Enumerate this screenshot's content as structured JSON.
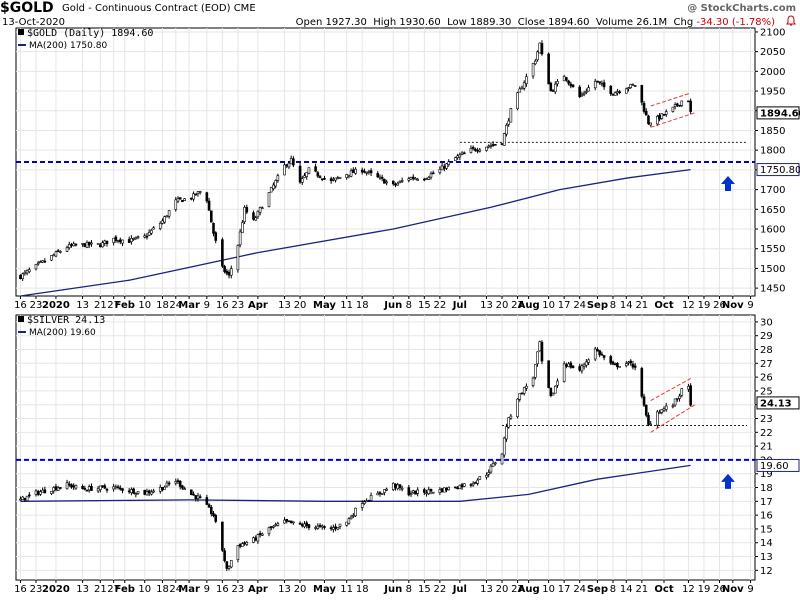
{
  "header": {
    "symbol": "$GOLD",
    "description": "Gold - Continuous Contract (EOD)",
    "exchange": "CME",
    "date": "13-Oct-2020",
    "quote": {
      "open_label": "Open",
      "open": "1927.30",
      "high_label": "High",
      "high": "1930.60",
      "low_label": "Low",
      "low": "1889.30",
      "close_label": "Close",
      "close": "1894.60",
      "volume_label": "Volume",
      "volume": "26.1M",
      "chg_label": "Chg",
      "chg": "-34.30 (-1.78%)"
    },
    "credit": "@ StockCharts.com"
  },
  "chart_data": [
    {
      "type": "candlestick",
      "title": "$GOLD (Daily) 1894.60",
      "ma_label": "MA(200) 1750.80",
      "last_price": "1894.60",
      "ma_value": "1750.80",
      "ylim": [
        1430,
        2110
      ],
      "yticks": [
        1450,
        1500,
        1550,
        1600,
        1650,
        1700,
        1750,
        1800,
        1850,
        1900,
        1950,
        2000,
        2050,
        2100
      ],
      "colors": {
        "price": "#000000",
        "ma": "#1a237e",
        "support": "#0000cc",
        "channel": "#e53935",
        "arrow": "#0033cc"
      },
      "price_path": [
        [
          "2019-12-16",
          1480
        ],
        [
          "2019-12-23",
          1505
        ],
        [
          "2020-01-06",
          1555
        ],
        [
          "2020-01-13",
          1560
        ],
        [
          "2020-01-21",
          1560
        ],
        [
          "2020-01-27",
          1575
        ],
        [
          "2020-02-03",
          1570
        ],
        [
          "2020-02-10",
          1580
        ],
        [
          "2020-02-18",
          1620
        ],
        [
          "2020-02-24",
          1670
        ],
        [
          "2020-03-02",
          1680
        ],
        [
          "2020-03-06",
          1695
        ],
        [
          "2020-03-09",
          1675
        ],
        [
          "2020-03-12",
          1590
        ],
        [
          "2020-03-16",
          1500
        ],
        [
          "2020-03-19",
          1480
        ],
        [
          "2020-03-23",
          1560
        ],
        [
          "2020-03-26",
          1650
        ],
        [
          "2020-03-30",
          1620
        ],
        [
          "2020-04-06",
          1690
        ],
        [
          "2020-04-13",
          1760
        ],
        [
          "2020-04-16",
          1775
        ],
        [
          "2020-04-20",
          1715
        ],
        [
          "2020-04-24",
          1750
        ],
        [
          "2020-05-04",
          1720
        ],
        [
          "2020-05-11",
          1740
        ],
        [
          "2020-05-18",
          1750
        ],
        [
          "2020-05-25",
          1730
        ],
        [
          "2020-06-01",
          1710
        ],
        [
          "2020-06-08",
          1730
        ],
        [
          "2020-06-15",
          1730
        ],
        [
          "2020-06-22",
          1750
        ],
        [
          "2020-06-29",
          1780
        ],
        [
          "2020-07-06",
          1800
        ],
        [
          "2020-07-13",
          1810
        ],
        [
          "2020-07-20",
          1820
        ],
        [
          "2020-07-24",
          1900
        ],
        [
          "2020-07-27",
          1940
        ],
        [
          "2020-07-31",
          1985
        ],
        [
          "2020-08-04",
          2030
        ],
        [
          "2020-08-06",
          2070
        ],
        [
          "2020-08-07",
          2040
        ],
        [
          "2020-08-11",
          1950
        ],
        [
          "2020-08-17",
          1990
        ],
        [
          "2020-08-24",
          1935
        ],
        [
          "2020-08-31",
          1975
        ],
        [
          "2020-09-08",
          1945
        ],
        [
          "2020-09-14",
          1960
        ],
        [
          "2020-09-18",
          1965
        ],
        [
          "2020-09-21",
          1920
        ],
        [
          "2020-09-24",
          1870
        ],
        [
          "2020-09-28",
          1880
        ],
        [
          "2020-10-05",
          1905
        ],
        [
          "2020-10-09",
          1925
        ],
        [
          "2020-10-12",
          1928
        ],
        [
          "2020-10-13",
          1894.6
        ]
      ],
      "ma_path": [
        [
          "2019-12-16",
          1430
        ],
        [
          "2020-02-03",
          1470
        ],
        [
          "2020-04-01",
          1540
        ],
        [
          "2020-06-01",
          1600
        ],
        [
          "2020-07-15",
          1655
        ],
        [
          "2020-08-15",
          1700
        ],
        [
          "2020-09-15",
          1730
        ],
        [
          "2020-10-13",
          1750.8
        ]
      ],
      "support_level": 1770,
      "breakout_level": 1820,
      "channel": {
        "lower": [
          [
            "2020-09-25",
            1858
          ],
          [
            "2020-10-15",
            1895
          ]
        ],
        "upper": [
          [
            "2020-09-25",
            1912
          ],
          [
            "2020-10-13",
            1945
          ]
        ]
      }
    },
    {
      "type": "candlestick",
      "title": "$SILVER 24.13",
      "ma_label": "MA(200) 19.60",
      "last_price": "24.13",
      "ma_value": "19.60",
      "ylim": [
        11.3,
        30.5
      ],
      "yticks": [
        12,
        13,
        14,
        15,
        16,
        17,
        18,
        19,
        20,
        21,
        22,
        23,
        24,
        25,
        26,
        27,
        28,
        29,
        30
      ],
      "colors": {
        "price": "#000000",
        "ma": "#1a237e",
        "support": "#0000cc",
        "channel": "#e53935",
        "arrow": "#0033cc"
      },
      "price_path": [
        [
          "2019-12-16",
          17.1
        ],
        [
          "2019-12-23",
          17.6
        ],
        [
          "2020-01-06",
          18.2
        ],
        [
          "2020-01-13",
          17.9
        ],
        [
          "2020-01-27",
          18.0
        ],
        [
          "2020-02-10",
          17.6
        ],
        [
          "2020-02-18",
          18.0
        ],
        [
          "2020-02-24",
          18.5
        ],
        [
          "2020-03-02",
          17.5
        ],
        [
          "2020-03-06",
          17.2
        ],
        [
          "2020-03-12",
          16.0
        ],
        [
          "2020-03-16",
          13.5
        ],
        [
          "2020-03-18",
          12.0
        ],
        [
          "2020-03-23",
          13.8
        ],
        [
          "2020-03-30",
          14.2
        ],
        [
          "2020-04-06",
          15.0
        ],
        [
          "2020-04-13",
          15.5
        ],
        [
          "2020-04-20",
          15.3
        ],
        [
          "2020-05-04",
          15.0
        ],
        [
          "2020-05-11",
          15.5
        ],
        [
          "2020-05-18",
          17.0
        ],
        [
          "2020-05-25",
          17.5
        ],
        [
          "2020-06-01",
          18.2
        ],
        [
          "2020-06-08",
          17.6
        ],
        [
          "2020-06-22",
          17.8
        ],
        [
          "2020-07-06",
          18.3
        ],
        [
          "2020-07-13",
          19.0
        ],
        [
          "2020-07-20",
          20.5
        ],
        [
          "2020-07-22",
          22.5
        ],
        [
          "2020-07-27",
          24.5
        ],
        [
          "2020-08-03",
          26.0
        ],
        [
          "2020-08-06",
          28.5
        ],
        [
          "2020-08-07",
          27.0
        ],
        [
          "2020-08-11",
          24.5
        ],
        [
          "2020-08-17",
          27.0
        ],
        [
          "2020-08-24",
          26.5
        ],
        [
          "2020-08-31",
          28.0
        ],
        [
          "2020-09-08",
          26.8
        ],
        [
          "2020-09-14",
          27.0
        ],
        [
          "2020-09-18",
          26.8
        ],
        [
          "2020-09-21",
          24.5
        ],
        [
          "2020-09-24",
          22.5
        ],
        [
          "2020-09-28",
          23.5
        ],
        [
          "2020-10-05",
          24.0
        ],
        [
          "2020-10-09",
          25.0
        ],
        [
          "2020-10-12",
          25.2
        ],
        [
          "2020-10-13",
          24.13
        ]
      ],
      "ma_path": [
        [
          "2019-12-16",
          17.0
        ],
        [
          "2020-03-01",
          17.1
        ],
        [
          "2020-05-01",
          17.0
        ],
        [
          "2020-07-01",
          17.0
        ],
        [
          "2020-08-01",
          17.5
        ],
        [
          "2020-09-01",
          18.6
        ],
        [
          "2020-10-13",
          19.6
        ]
      ],
      "support_level": 20,
      "breakout_level": 22.5,
      "channel": {
        "lower": [
          [
            "2020-09-25",
            22.0
          ],
          [
            "2020-10-15",
            24.0
          ]
        ],
        "upper": [
          [
            "2020-09-25",
            24.3
          ],
          [
            "2020-10-13",
            25.9
          ]
        ]
      }
    }
  ],
  "x_axis": {
    "start": "2019-12-14",
    "end": "2020-11-11",
    "tick_labels": [
      {
        "label": "16",
        "date": "2019-12-16",
        "bold": false
      },
      {
        "label": "23",
        "date": "2019-12-23",
        "bold": false
      },
      {
        "label": "2020",
        "date": "2020-01-01",
        "bold": true
      },
      {
        "label": "13",
        "date": "2020-01-13",
        "bold": false
      },
      {
        "label": "21",
        "date": "2020-01-21",
        "bold": false
      },
      {
        "label": "27",
        "date": "2020-01-27",
        "bold": false
      },
      {
        "label": "Feb",
        "date": "2020-02-01",
        "bold": true
      },
      {
        "label": "10",
        "date": "2020-02-10",
        "bold": false
      },
      {
        "label": "18",
        "date": "2020-02-18",
        "bold": false
      },
      {
        "label": "24",
        "date": "2020-02-24",
        "bold": false
      },
      {
        "label": "Mar",
        "date": "2020-03-01",
        "bold": true
      },
      {
        "label": "9",
        "date": "2020-03-09",
        "bold": false
      },
      {
        "label": "16",
        "date": "2020-03-16",
        "bold": false
      },
      {
        "label": "23",
        "date": "2020-03-23",
        "bold": false
      },
      {
        "label": "Apr",
        "date": "2020-04-01",
        "bold": true
      },
      {
        "label": "13",
        "date": "2020-04-13",
        "bold": false
      },
      {
        "label": "20",
        "date": "2020-04-20",
        "bold": false
      },
      {
        "label": "May",
        "date": "2020-05-01",
        "bold": true
      },
      {
        "label": "11",
        "date": "2020-05-11",
        "bold": false
      },
      {
        "label": "18",
        "date": "2020-05-18",
        "bold": false
      },
      {
        "label": "Jun",
        "date": "2020-06-01",
        "bold": true
      },
      {
        "label": "8",
        "date": "2020-06-08",
        "bold": false
      },
      {
        "label": "15",
        "date": "2020-06-15",
        "bold": false
      },
      {
        "label": "22",
        "date": "2020-06-22",
        "bold": false
      },
      {
        "label": "Jul",
        "date": "2020-07-01",
        "bold": true
      },
      {
        "label": "13",
        "date": "2020-07-13",
        "bold": false
      },
      {
        "label": "20",
        "date": "2020-07-20",
        "bold": false
      },
      {
        "label": "27",
        "date": "2020-07-27",
        "bold": false
      },
      {
        "label": "Aug",
        "date": "2020-08-01",
        "bold": true
      },
      {
        "label": "10",
        "date": "2020-08-10",
        "bold": false
      },
      {
        "label": "17",
        "date": "2020-08-17",
        "bold": false
      },
      {
        "label": "24",
        "date": "2020-08-24",
        "bold": false
      },
      {
        "label": "Sep",
        "date": "2020-09-01",
        "bold": true
      },
      {
        "label": "8",
        "date": "2020-09-08",
        "bold": false
      },
      {
        "label": "14",
        "date": "2020-09-14",
        "bold": false
      },
      {
        "label": "21",
        "date": "2020-09-21",
        "bold": false
      },
      {
        "label": "Oct",
        "date": "2020-10-01",
        "bold": true
      },
      {
        "label": "12",
        "date": "2020-10-12",
        "bold": false
      },
      {
        "label": "19",
        "date": "2020-10-19",
        "bold": false
      },
      {
        "label": "26",
        "date": "2020-10-26",
        "bold": false
      },
      {
        "label": "Nov",
        "date": "2020-11-01",
        "bold": true
      },
      {
        "label": "9",
        "date": "2020-11-09",
        "bold": false
      }
    ]
  }
}
